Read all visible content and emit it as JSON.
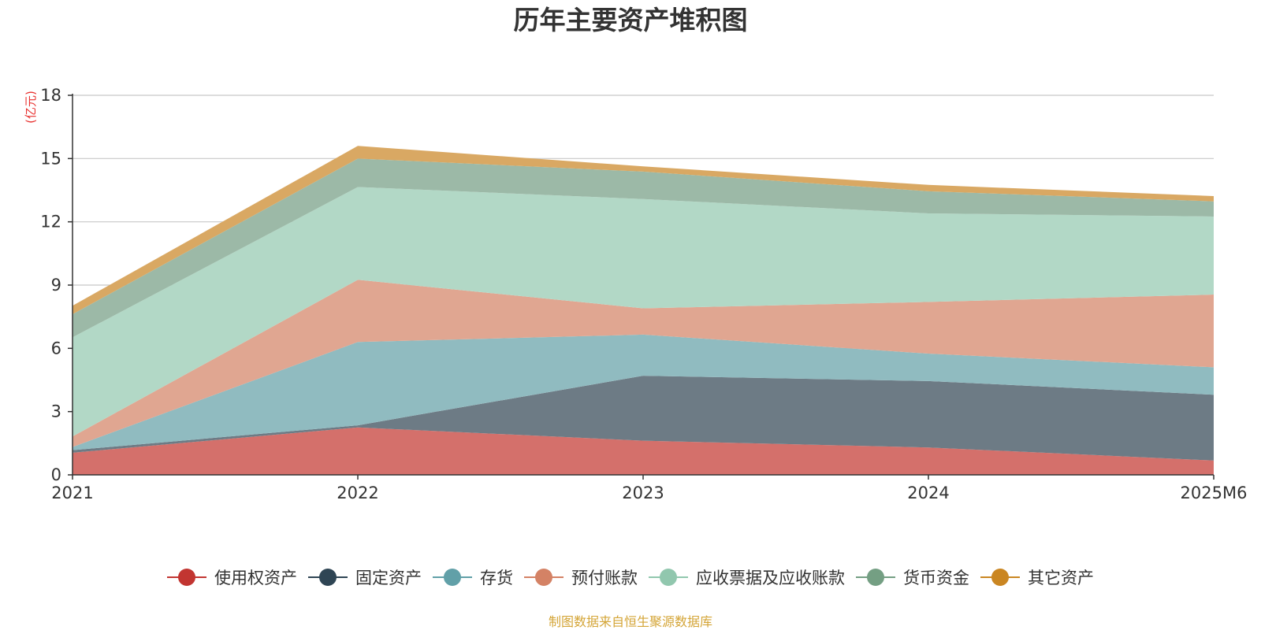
{
  "chart_data": {
    "type": "area",
    "stacked": true,
    "title": "历年主要资产堆积图",
    "y_unit": "(亿元)",
    "categories": [
      "2021",
      "2022",
      "2023",
      "2024",
      "2025M6"
    ],
    "ylim": [
      0,
      18
    ],
    "y_ticks": [
      "0",
      "3",
      "6",
      "9",
      "12",
      "15",
      "18"
    ],
    "grid": true,
    "legend_position": "bottom",
    "series": [
      {
        "name": "使用权资产",
        "color": "#c23531",
        "fill": "#d4706b",
        "values": [
          1.05,
          2.25,
          1.62,
          1.3,
          0.68
        ]
      },
      {
        "name": "固定资产",
        "color": "#2f4554",
        "fill": "#6d7b85",
        "values": [
          0.12,
          0.1,
          3.08,
          3.15,
          3.12
        ]
      },
      {
        "name": "存货",
        "color": "#61a0a8",
        "fill": "#90bbc0",
        "values": [
          0.15,
          3.95,
          1.95,
          1.3,
          1.3
        ]
      },
      {
        "name": "预付账款",
        "color": "#d48265",
        "fill": "#e0a691",
        "values": [
          0.5,
          2.95,
          1.25,
          2.45,
          3.45
        ]
      },
      {
        "name": "应收票据及应收账款",
        "color": "#91c7ae",
        "fill": "#b2d8c6",
        "values": [
          4.7,
          4.4,
          5.18,
          4.2,
          3.7
        ]
      },
      {
        "name": "货币资金",
        "color": "#749f83",
        "fill": "#9cb9a7",
        "values": [
          1.1,
          1.35,
          1.3,
          1.05,
          0.72
        ]
      },
      {
        "name": "其它资产",
        "color": "#ca8622",
        "fill": "#d9a863",
        "values": [
          0.4,
          0.6,
          0.25,
          0.3,
          0.25
        ]
      }
    ]
  },
  "source_note": "制图数据来自恒生聚源数据库"
}
